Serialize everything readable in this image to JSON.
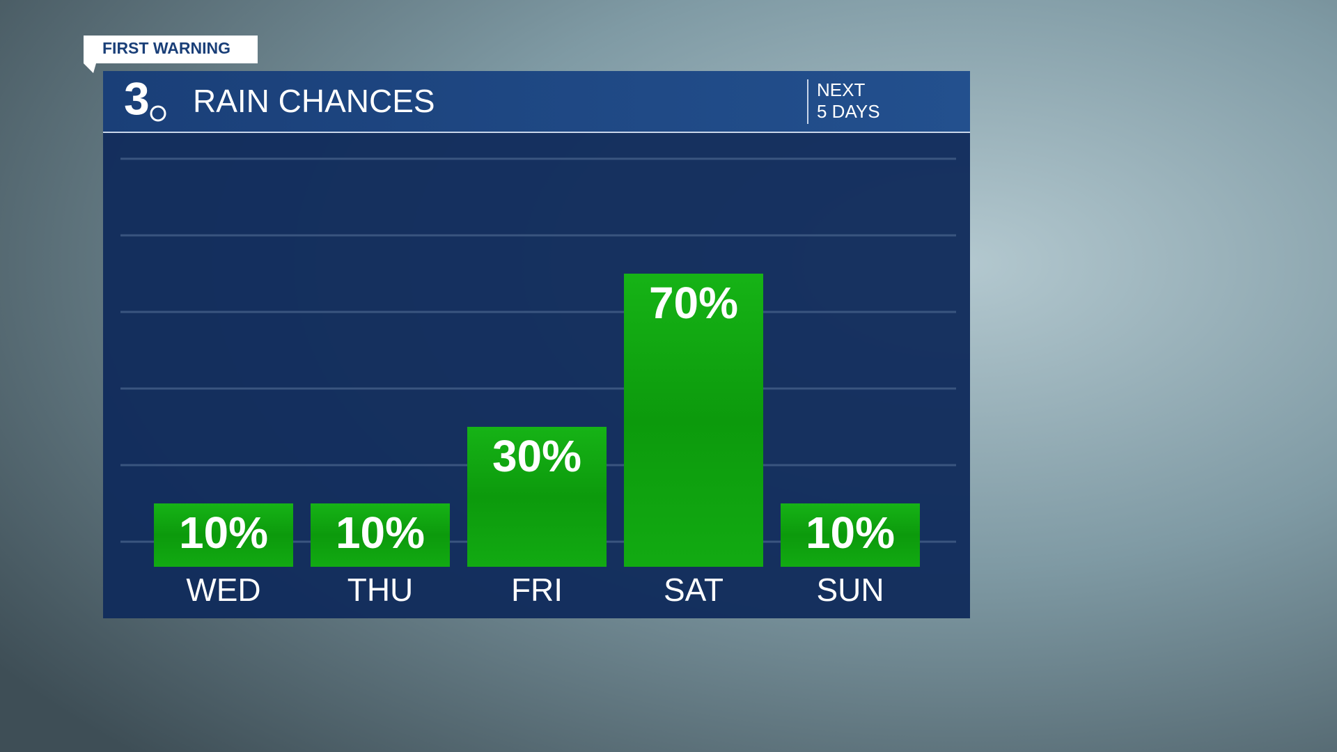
{
  "chart_data": {
    "type": "bar",
    "tag": "FIRST WARNING",
    "logo": "3",
    "title": "RAIN CHANCES",
    "subtitle_lines": [
      "NEXT",
      "5 DAYS"
    ],
    "categories": [
      "WED",
      "THU",
      "FRI",
      "SAT",
      "SUN"
    ],
    "values": [
      10,
      10,
      30,
      70,
      10
    ],
    "value_labels": [
      "10%",
      "10%",
      "30%",
      "70%",
      "10%"
    ],
    "color": "#0c9a0c",
    "ylim": [
      0,
      100
    ],
    "yticks": [
      0,
      20,
      40,
      60,
      80,
      100
    ],
    "grid": true
  }
}
